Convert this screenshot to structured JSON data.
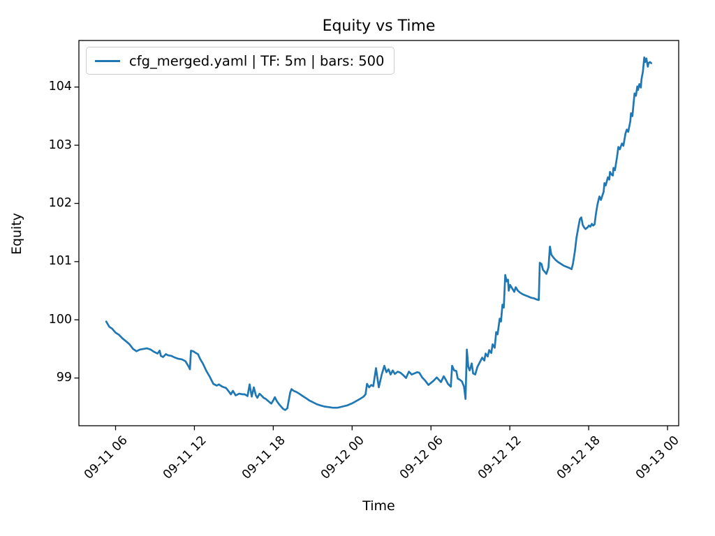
{
  "figure": {
    "title": "Equity vs Time"
  },
  "axes": {
    "xlabel": "Time",
    "ylabel": "Equity"
  },
  "legend": {
    "entries": [
      {
        "label": "cfg_merged.yaml | TF: 5m | bars: 500",
        "color": "#1f77b4"
      }
    ]
  },
  "chart_data": {
    "type": "line",
    "title": "Equity vs Time",
    "xlabel": "Time",
    "ylabel": "Equity",
    "grid": false,
    "legend_position": "upper left",
    "x_unit": "hours offset matching tick labels (MM-DD HH)",
    "xlim": [
      3.21,
      48.85
    ],
    "ylim": [
      98.18,
      104.8
    ],
    "xticks": [
      {
        "t": 6,
        "label": "09-11 06"
      },
      {
        "t": 12,
        "label": "09-11 12"
      },
      {
        "t": 18,
        "label": "09-11 18"
      },
      {
        "t": 24,
        "label": "09-12 00"
      },
      {
        "t": 30,
        "label": "09-12 06"
      },
      {
        "t": 36,
        "label": "09-12 12"
      },
      {
        "t": 42,
        "label": "09-12 18"
      },
      {
        "t": 48,
        "label": "09-13 00"
      }
    ],
    "yticks": [
      99,
      100,
      101,
      102,
      103,
      104
    ],
    "series": [
      {
        "name": "cfg_merged.yaml | TF: 5m | bars: 500",
        "color": "#1f77b4",
        "line_width": 2.7,
        "points": [
          [
            5.29,
            99.97
          ],
          [
            5.52,
            99.88
          ],
          [
            5.73,
            99.85
          ],
          [
            6.0,
            99.78
          ],
          [
            6.27,
            99.74
          ],
          [
            6.53,
            99.68
          ],
          [
            6.8,
            99.63
          ],
          [
            7.06,
            99.58
          ],
          [
            7.33,
            99.5
          ],
          [
            7.59,
            99.46
          ],
          [
            7.86,
            99.49
          ],
          [
            8.13,
            99.5
          ],
          [
            8.39,
            99.51
          ],
          [
            8.66,
            99.49
          ],
          [
            8.92,
            99.45
          ],
          [
            9.19,
            99.42
          ],
          [
            9.35,
            99.47
          ],
          [
            9.45,
            99.38
          ],
          [
            9.61,
            99.36
          ],
          [
            9.83,
            99.41
          ],
          [
            9.99,
            99.39
          ],
          [
            10.25,
            99.38
          ],
          [
            10.52,
            99.35
          ],
          [
            10.78,
            99.33
          ],
          [
            11.05,
            99.32
          ],
          [
            11.31,
            99.29
          ],
          [
            11.58,
            99.19
          ],
          [
            11.66,
            99.15
          ],
          [
            11.74,
            99.47
          ],
          [
            11.9,
            99.46
          ],
          [
            12.11,
            99.43
          ],
          [
            12.27,
            99.41
          ],
          [
            12.43,
            99.33
          ],
          [
            12.64,
            99.25
          ],
          [
            12.91,
            99.12
          ],
          [
            13.17,
            99.02
          ],
          [
            13.44,
            98.9
          ],
          [
            13.7,
            98.87
          ],
          [
            13.86,
            98.89
          ],
          [
            14.13,
            98.85
          ],
          [
            14.4,
            98.83
          ],
          [
            14.61,
            98.77
          ],
          [
            14.77,
            98.72
          ],
          [
            14.93,
            98.78
          ],
          [
            15.14,
            98.7
          ],
          [
            15.41,
            98.73
          ],
          [
            15.67,
            98.72
          ],
          [
            15.83,
            98.72
          ],
          [
            16.04,
            98.69
          ],
          [
            16.2,
            98.89
          ],
          [
            16.36,
            98.68
          ],
          [
            16.52,
            98.84
          ],
          [
            16.68,
            98.7
          ],
          [
            16.79,
            98.66
          ],
          [
            16.95,
            98.73
          ],
          [
            17.05,
            98.71
          ],
          [
            17.27,
            98.66
          ],
          [
            17.43,
            98.64
          ],
          [
            17.64,
            98.6
          ],
          [
            17.85,
            98.56
          ],
          [
            18.01,
            98.62
          ],
          [
            18.12,
            98.67
          ],
          [
            18.28,
            98.6
          ],
          [
            18.44,
            98.55
          ],
          [
            18.59,
            98.51
          ],
          [
            18.75,
            98.47
          ],
          [
            18.91,
            98.45
          ],
          [
            19.07,
            98.48
          ],
          [
            19.29,
            98.75
          ],
          [
            19.39,
            98.81
          ],
          [
            19.55,
            98.78
          ],
          [
            19.76,
            98.76
          ],
          [
            19.98,
            98.73
          ],
          [
            20.24,
            98.69
          ],
          [
            20.51,
            98.65
          ],
          [
            20.77,
            98.61
          ],
          [
            21.04,
            98.58
          ],
          [
            21.3,
            98.55
          ],
          [
            21.57,
            98.53
          ],
          [
            21.89,
            98.51
          ],
          [
            22.21,
            98.5
          ],
          [
            22.53,
            98.49
          ],
          [
            22.9,
            98.49
          ],
          [
            23.27,
            98.51
          ],
          [
            23.64,
            98.53
          ],
          [
            23.96,
            98.56
          ],
          [
            24.28,
            98.6
          ],
          [
            24.6,
            98.64
          ],
          [
            24.87,
            98.68
          ],
          [
            25.02,
            98.72
          ],
          [
            25.13,
            98.9
          ],
          [
            25.29,
            98.84
          ],
          [
            25.45,
            98.88
          ],
          [
            25.61,
            98.86
          ],
          [
            25.82,
            99.17
          ],
          [
            26.03,
            98.84
          ],
          [
            26.24,
            99.05
          ],
          [
            26.45,
            99.21
          ],
          [
            26.61,
            99.1
          ],
          [
            26.77,
            99.15
          ],
          [
            26.93,
            99.06
          ],
          [
            27.09,
            99.13
          ],
          [
            27.25,
            99.07
          ],
          [
            27.47,
            99.11
          ],
          [
            27.68,
            99.09
          ],
          [
            27.89,
            99.05
          ],
          [
            28.1,
            99.0
          ],
          [
            28.32,
            99.11
          ],
          [
            28.53,
            99.06
          ],
          [
            28.74,
            99.08
          ],
          [
            28.96,
            99.1
          ],
          [
            29.11,
            99.09
          ],
          [
            29.33,
            99.01
          ],
          [
            29.54,
            98.96
          ],
          [
            29.81,
            98.88
          ],
          [
            30.02,
            98.92
          ],
          [
            30.18,
            98.95
          ],
          [
            30.44,
            99.01
          ],
          [
            30.6,
            98.97
          ],
          [
            30.76,
            98.93
          ],
          [
            30.97,
            99.03
          ],
          [
            31.13,
            98.97
          ],
          [
            31.29,
            98.9
          ],
          [
            31.51,
            98.85
          ],
          [
            31.61,
            99.21
          ],
          [
            31.77,
            99.13
          ],
          [
            31.93,
            99.12
          ],
          [
            32.04,
            98.99
          ],
          [
            32.2,
            98.97
          ],
          [
            32.36,
            98.94
          ],
          [
            32.52,
            98.85
          ],
          [
            32.63,
            98.64
          ],
          [
            32.73,
            99.49
          ],
          [
            32.84,
            99.19
          ],
          [
            32.94,
            99.13
          ],
          [
            33.1,
            99.25
          ],
          [
            33.21,
            99.08
          ],
          [
            33.37,
            99.06
          ],
          [
            33.53,
            99.19
          ],
          [
            33.74,
            99.28
          ],
          [
            33.9,
            99.35
          ],
          [
            34.06,
            99.3
          ],
          [
            34.16,
            99.42
          ],
          [
            34.32,
            99.37
          ],
          [
            34.43,
            99.48
          ],
          [
            34.59,
            99.43
          ],
          [
            34.69,
            99.58
          ],
          [
            34.85,
            99.52
          ],
          [
            34.96,
            99.79
          ],
          [
            35.07,
            99.75
          ],
          [
            35.23,
            100.02
          ],
          [
            35.33,
            99.97
          ],
          [
            35.44,
            100.26
          ],
          [
            35.54,
            100.21
          ],
          [
            35.65,
            100.77
          ],
          [
            35.76,
            100.66
          ],
          [
            35.86,
            100.69
          ],
          [
            35.92,
            100.5
          ],
          [
            36.02,
            100.6
          ],
          [
            36.18,
            100.54
          ],
          [
            36.34,
            100.48
          ],
          [
            36.45,
            100.56
          ],
          [
            36.61,
            100.5
          ],
          [
            36.77,
            100.47
          ],
          [
            36.98,
            100.44
          ],
          [
            37.19,
            100.42
          ],
          [
            37.41,
            100.4
          ],
          [
            37.62,
            100.38
          ],
          [
            37.83,
            100.37
          ],
          [
            38.04,
            100.35
          ],
          [
            38.2,
            100.34
          ],
          [
            38.28,
            100.98
          ],
          [
            38.41,
            100.96
          ],
          [
            38.52,
            100.86
          ],
          [
            38.68,
            100.82
          ],
          [
            38.78,
            100.79
          ],
          [
            38.94,
            100.9
          ],
          [
            39.05,
            101.26
          ],
          [
            39.16,
            101.12
          ],
          [
            39.32,
            101.07
          ],
          [
            39.48,
            101.03
          ],
          [
            39.69,
            100.99
          ],
          [
            39.9,
            100.96
          ],
          [
            40.11,
            100.93
          ],
          [
            40.33,
            100.91
          ],
          [
            40.54,
            100.89
          ],
          [
            40.7,
            100.87
          ],
          [
            40.8,
            100.96
          ],
          [
            40.96,
            101.19
          ],
          [
            41.07,
            101.41
          ],
          [
            41.23,
            101.61
          ],
          [
            41.33,
            101.73
          ],
          [
            41.44,
            101.76
          ],
          [
            41.55,
            101.63
          ],
          [
            41.65,
            101.59
          ],
          [
            41.76,
            101.56
          ],
          [
            41.92,
            101.59
          ],
          [
            42.02,
            101.62
          ],
          [
            42.13,
            101.6
          ],
          [
            42.24,
            101.65
          ],
          [
            42.34,
            101.62
          ],
          [
            42.45,
            101.64
          ],
          [
            42.56,
            101.83
          ],
          [
            42.66,
            101.97
          ],
          [
            42.77,
            102.08
          ],
          [
            42.82,
            102.12
          ],
          [
            42.93,
            102.06
          ],
          [
            43.04,
            102.13
          ],
          [
            43.14,
            102.2
          ],
          [
            43.2,
            102.35
          ],
          [
            43.3,
            102.31
          ],
          [
            43.46,
            102.45
          ],
          [
            43.57,
            102.41
          ],
          [
            43.62,
            102.54
          ],
          [
            43.73,
            102.5
          ],
          [
            43.84,
            102.48
          ],
          [
            43.89,
            102.61
          ],
          [
            44.0,
            102.57
          ],
          [
            44.16,
            102.8
          ],
          [
            44.26,
            102.97
          ],
          [
            44.37,
            102.93
          ],
          [
            44.53,
            103.03
          ],
          [
            44.64,
            102.99
          ],
          [
            44.8,
            103.2
          ],
          [
            44.9,
            103.27
          ],
          [
            45.01,
            103.23
          ],
          [
            45.17,
            103.41
          ],
          [
            45.22,
            103.55
          ],
          [
            45.33,
            103.5
          ],
          [
            45.44,
            103.77
          ],
          [
            45.49,
            103.89
          ],
          [
            45.6,
            103.85
          ],
          [
            45.7,
            104.01
          ],
          [
            45.76,
            103.95
          ],
          [
            45.86,
            104.05
          ],
          [
            45.97,
            103.99
          ],
          [
            46.02,
            104.13
          ],
          [
            46.13,
            104.27
          ],
          [
            46.23,
            104.51
          ],
          [
            46.29,
            104.43
          ],
          [
            46.39,
            104.49
          ],
          [
            46.5,
            104.35
          ],
          [
            46.55,
            104.41
          ],
          [
            46.66,
            104.43
          ],
          [
            46.76,
            104.41
          ]
        ]
      }
    ]
  }
}
